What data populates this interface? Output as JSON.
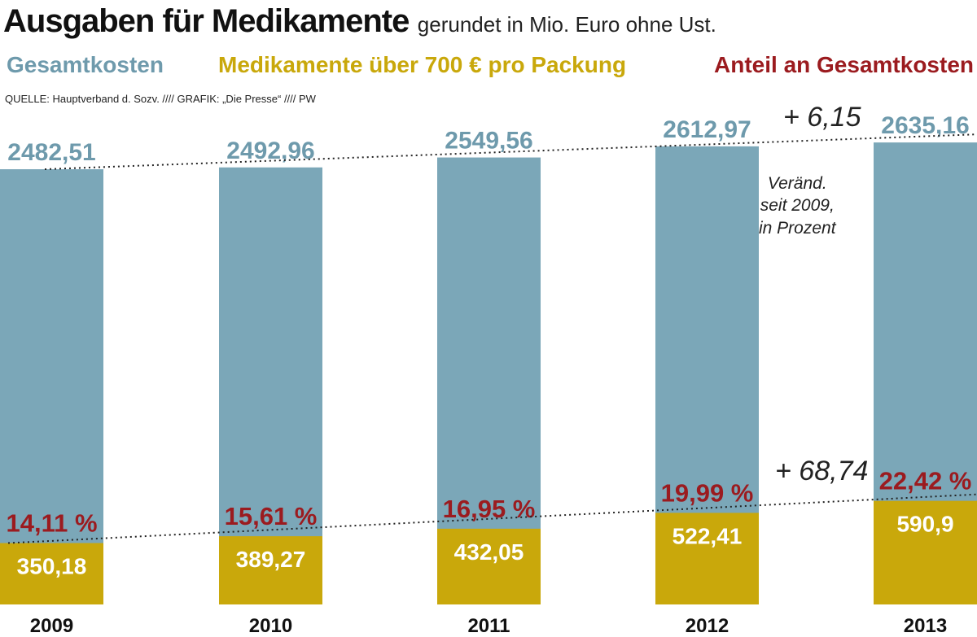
{
  "header": {
    "title": "Ausgaben für Medikamente",
    "subtitle": "gerundet in Mio. Euro ohne Ust.",
    "source": "QUELLE: Hauptverband d. Sozv.  ////  GRAFIK: „Die Presse“  ////  PW"
  },
  "colors": {
    "total": "#7BA7B8",
    "expensive": "#C9A80B",
    "share": "#9B1B1F",
    "total_label": "#6E9AAC"
  },
  "annotations": {
    "change_total": "+ 6,15",
    "change_expensive": "+ 68,74",
    "change_caption": "Veränd.\nseit 2009,\nin Prozent"
  },
  "chart_data": {
    "type": "bar",
    "categories": [
      "2009",
      "2010",
      "2011",
      "2012",
      "2013"
    ],
    "series": [
      {
        "name": "Gesamtkosten",
        "values": [
          2482.51,
          2492.96,
          2549.56,
          2612.97,
          2635.16
        ],
        "labels": [
          "2482,51",
          "2492,96",
          "2549,56",
          "2612,97",
          "2635,16"
        ]
      },
      {
        "name": "Medikamente über 700 € pro Packung",
        "values": [
          350.18,
          389.27,
          432.05,
          522.41,
          590.9
        ],
        "labels": [
          "350,18",
          "389,27",
          "432,05",
          "522,41",
          "590,9"
        ]
      },
      {
        "name": "Anteil an Gesamtkosten",
        "values": [
          14.11,
          15.61,
          16.95,
          19.99,
          22.42
        ],
        "labels": [
          "14,11 %",
          "15,61 %",
          "16,95 %",
          "19,99 %",
          "22,42 %"
        ]
      }
    ],
    "grid": false,
    "legend_position": "top"
  }
}
